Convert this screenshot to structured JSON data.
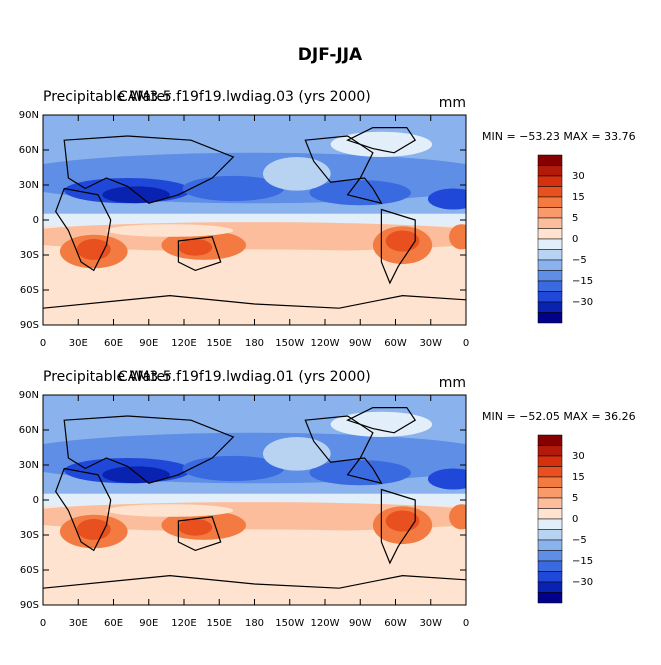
{
  "title": "DJF-JJA",
  "panels": [
    {
      "left_title": "Precipitable Water",
      "center_title": "CAM3.5.f19f19.lwdiag.03 (yrs 2000)",
      "units": "mm",
      "min_max": "MIN = −53.23 MAX =  33.76"
    },
    {
      "left_title": "Precipitable Water",
      "center_title": "CAM3.5.f19f19.lwdiag.01 (yrs 2000)",
      "units": "mm",
      "min_max": "MIN = −52.05 MAX =  36.26"
    }
  ],
  "lat_labels": [
    "90N",
    "60N",
    "30N",
    "0",
    "30S",
    "60S",
    "90S"
  ],
  "lon_labels": [
    "0",
    "30E",
    "60E",
    "90E",
    "120E",
    "150E",
    "180",
    "150W",
    "120W",
    "90W",
    "60W",
    "30W",
    "0"
  ],
  "colorbar": {
    "colors": [
      "#870000",
      "#b21a0a",
      "#d6300f",
      "#e8501f",
      "#f37a40",
      "#f89a6a",
      "#fbbd9c",
      "#fde3d0",
      "#e2eef9",
      "#b8d3f2",
      "#8ab2ec",
      "#5f8ee6",
      "#3a6ae0",
      "#1f48d8",
      "#0a22b0",
      "#00008a"
    ],
    "labels": [
      "30",
      "15",
      "5",
      "0",
      "−5",
      "−15",
      "−30"
    ]
  }
}
